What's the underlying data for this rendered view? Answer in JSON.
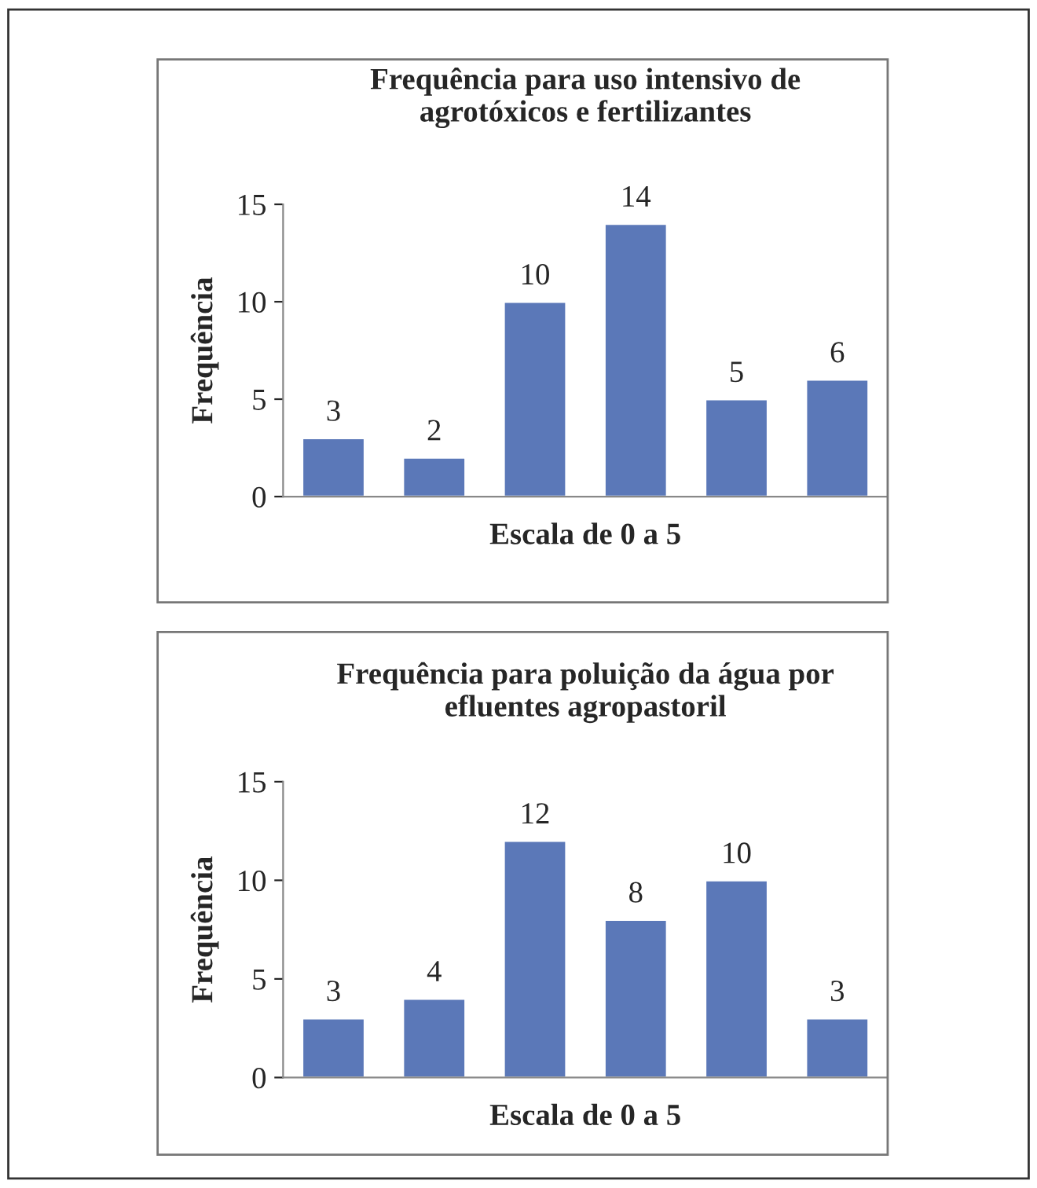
{
  "chart_data": [
    {
      "type": "bar",
      "title": "Frequência para uso intensivo de\nagrotóxicos e fertilizantes",
      "xlabel": "Escala de 0 a 5",
      "ylabel": "Frequência",
      "categories": [
        null,
        null,
        null,
        null,
        null,
        null
      ],
      "values": [
        3,
        2,
        10,
        14,
        5,
        6
      ],
      "color": "#5b78b8",
      "ylim": [
        0,
        15
      ],
      "yticks": [
        0,
        5,
        10,
        15
      ],
      "data_labels": true,
      "grid": false,
      "tick_labels": "y"
    },
    {
      "type": "bar",
      "title": "Frequência para poluição da água por\nefluentes agropastoril",
      "xlabel": "Escala de 0 a 5",
      "ylabel": "Frequência",
      "categories": [
        null,
        null,
        null,
        null,
        null,
        null
      ],
      "values": [
        3,
        4,
        12,
        8,
        10,
        3
      ],
      "color": "#5b78b8",
      "ylim": [
        0,
        15
      ],
      "yticks": [
        0,
        5,
        10,
        15
      ],
      "data_labels": true,
      "grid": false,
      "tick_labels": "y"
    }
  ]
}
